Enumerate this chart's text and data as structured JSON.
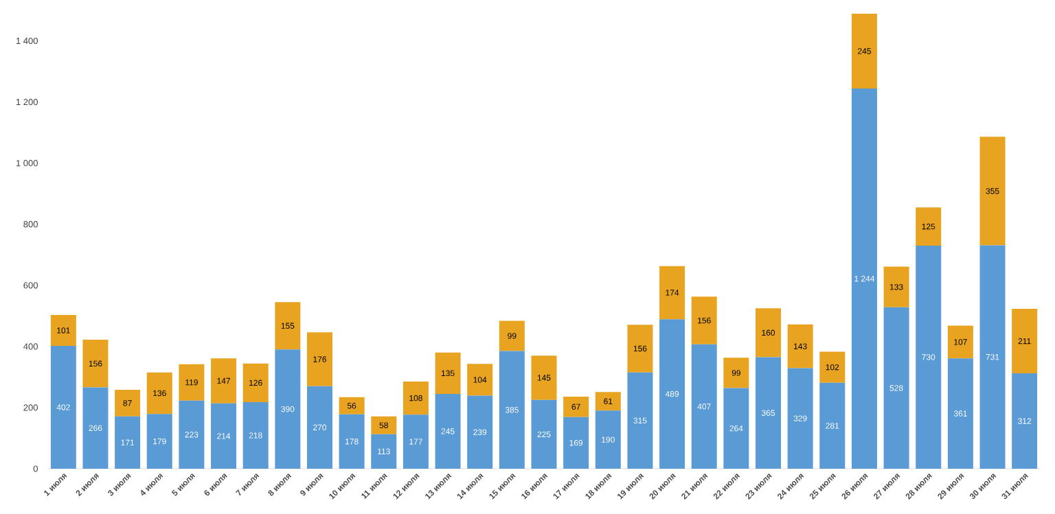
{
  "chart_data": {
    "type": "bar",
    "stacked": true,
    "categories": [
      "1 июля",
      "2 июля",
      "3 июля",
      "4 июля",
      "5 июля",
      "6 июля",
      "7 июля",
      "8 июля",
      "9 июля",
      "10 июля",
      "11 июля",
      "12 июля",
      "13 июля",
      "14 июля",
      "15 июля",
      "16 июля",
      "17 июля",
      "18 июля",
      "19 июля",
      "20 июля",
      "21 июля",
      "22 июля",
      "23 июля",
      "24 июля",
      "25 июля",
      "26 июля",
      "27 июля",
      "28 июля",
      "29 июля",
      "30 июля",
      "31 июля"
    ],
    "series": [
      {
        "color": "#5b9bd5",
        "values": [
          402,
          266,
          171,
          179,
          223,
          214,
          218,
          390,
          270,
          178,
          113,
          177,
          245,
          239,
          385,
          225,
          169,
          190,
          315,
          489,
          407,
          264,
          365,
          329,
          281,
          1244,
          528,
          730,
          361,
          731,
          312
        ],
        "value_labels": [
          "402",
          "266",
          "171",
          "179",
          "223",
          "214",
          "218",
          "390",
          "270",
          "178",
          "113",
          "177",
          "245",
          "239",
          "385",
          "225",
          "169",
          "190",
          "315",
          "489",
          "407",
          "264",
          "365",
          "329",
          "281",
          "1 244",
          "528",
          "730",
          "361",
          "731",
          "312"
        ]
      },
      {
        "color": "#e8a321",
        "values": [
          101,
          156,
          87,
          136,
          119,
          147,
          126,
          155,
          176,
          56,
          58,
          108,
          135,
          104,
          99,
          145,
          67,
          61,
          156,
          174,
          156,
          99,
          160,
          143,
          102,
          245,
          133,
          125,
          107,
          355,
          211
        ],
        "value_labels": [
          "101",
          "156",
          "87",
          "136",
          "119",
          "147",
          "126",
          "155",
          "176",
          "56",
          "58",
          "108",
          "135",
          "104",
          "99",
          "145",
          "67",
          "61",
          "156",
          "174",
          "156",
          "99",
          "160",
          "143",
          "102",
          "245",
          "133",
          "125",
          "107",
          "355",
          "211"
        ]
      }
    ],
    "ylim": [
      0,
      1500
    ],
    "yticks": [
      0,
      200,
      400,
      600,
      800,
      {
        "value": 1000,
        "label": "1 000"
      },
      {
        "value": 1200,
        "label": "1 200"
      },
      {
        "value": 1400,
        "label": "1 400"
      }
    ]
  }
}
